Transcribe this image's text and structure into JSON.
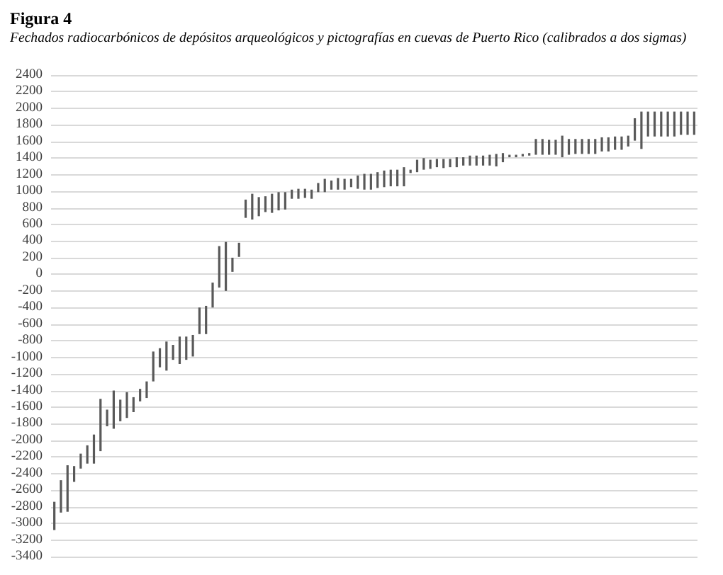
{
  "chart_data": {
    "type": "bar",
    "title": "Figura 4",
    "subtitle": "Fechados radiocarbónicos de depósitos arqueológicos y pictografías en cuevas de Puerto Rico (calibrados a dos sigmas)",
    "categories": [
      null,
      null,
      null,
      null,
      null,
      null,
      null,
      null,
      null,
      null,
      null,
      null,
      null,
      null,
      null,
      null,
      null,
      null,
      null,
      null,
      null,
      null,
      null,
      null,
      null,
      null,
      null,
      null,
      null,
      null,
      null,
      null,
      null,
      null,
      null,
      null,
      null,
      null,
      null,
      null,
      null,
      null,
      null,
      null,
      null,
      null,
      null,
      null,
      null,
      null,
      null,
      null,
      null,
      null,
      null,
      null,
      null,
      null,
      null,
      null,
      null,
      null,
      null,
      null,
      null,
      null,
      null,
      null,
      null,
      null,
      null,
      null,
      null,
      null,
      null,
      null,
      null,
      null,
      null,
      null,
      null,
      null,
      null,
      null,
      null,
      null,
      null,
      null,
      null,
      null,
      null,
      null,
      null,
      null,
      null,
      null,
      null,
      null
    ],
    "base": [
      -3080,
      -2870,
      -2860,
      -2500,
      -2340,
      -2280,
      -2280,
      -2130,
      -1830,
      -1860,
      -1770,
      -1730,
      -1660,
      -1530,
      -1490,
      -1290,
      -1120,
      -1160,
      -1030,
      -1080,
      -1030,
      -990,
      -720,
      -720,
      -400,
      -160,
      -200,
      30,
      210,
      680,
      660,
      700,
      750,
      740,
      770,
      780,
      910,
      910,
      920,
      910,
      990,
      990,
      1020,
      1020,
      1020,
      1050,
      1030,
      1020,
      1020,
      1040,
      1050,
      1060,
      1060,
      1060,
      1220,
      1230,
      1260,
      1270,
      1290,
      1280,
      1290,
      1290,
      1310,
      1310,
      1310,
      1310,
      1310,
      1300,
      1350,
      1410,
      1410,
      1420,
      1430,
      1440,
      1440,
      1440,
      1440,
      1410,
      1440,
      1450,
      1450,
      1450,
      1450,
      1480,
      1480,
      1500,
      1500,
      1540,
      1610,
      1510,
      1660,
      1660,
      1660,
      1660,
      1660,
      1680,
      1680,
      1680
    ],
    "values": [
      340,
      390,
      560,
      190,
      180,
      220,
      350,
      630,
      200,
      460,
      260,
      310,
      180,
      150,
      200,
      360,
      230,
      350,
      180,
      330,
      280,
      260,
      320,
      340,
      300,
      500,
      590,
      170,
      170,
      220,
      310,
      230,
      190,
      230,
      220,
      210,
      110,
      120,
      110,
      110,
      110,
      160,
      110,
      140,
      130,
      100,
      160,
      190,
      190,
      190,
      200,
      200,
      200,
      230,
      40,
      150,
      140,
      110,
      100,
      110,
      100,
      120,
      100,
      120,
      120,
      120,
      130,
      150,
      110,
      30,
      30,
      30,
      30,
      190,
      190,
      180,
      180,
      260,
      190,
      180,
      180,
      180,
      180,
      170,
      170,
      160,
      160,
      130,
      270,
      450,
      300,
      300,
      300,
      300,
      300,
      280,
      280,
      280
    ],
    "color": "#595959",
    "ylim": [
      -3400,
      2400
    ],
    "yticks": [
      -3400,
      -3200,
      -3000,
      -2800,
      -2600,
      -2400,
      -2200,
      -2000,
      -1800,
      -1600,
      -1400,
      -1200,
      -1000,
      -800,
      -600,
      -400,
      -200,
      0,
      200,
      400,
      600,
      800,
      1000,
      1200,
      1400,
      1600,
      1800,
      2000,
      2200,
      2400
    ],
    "grid": "y",
    "tick_labels": "y"
  }
}
